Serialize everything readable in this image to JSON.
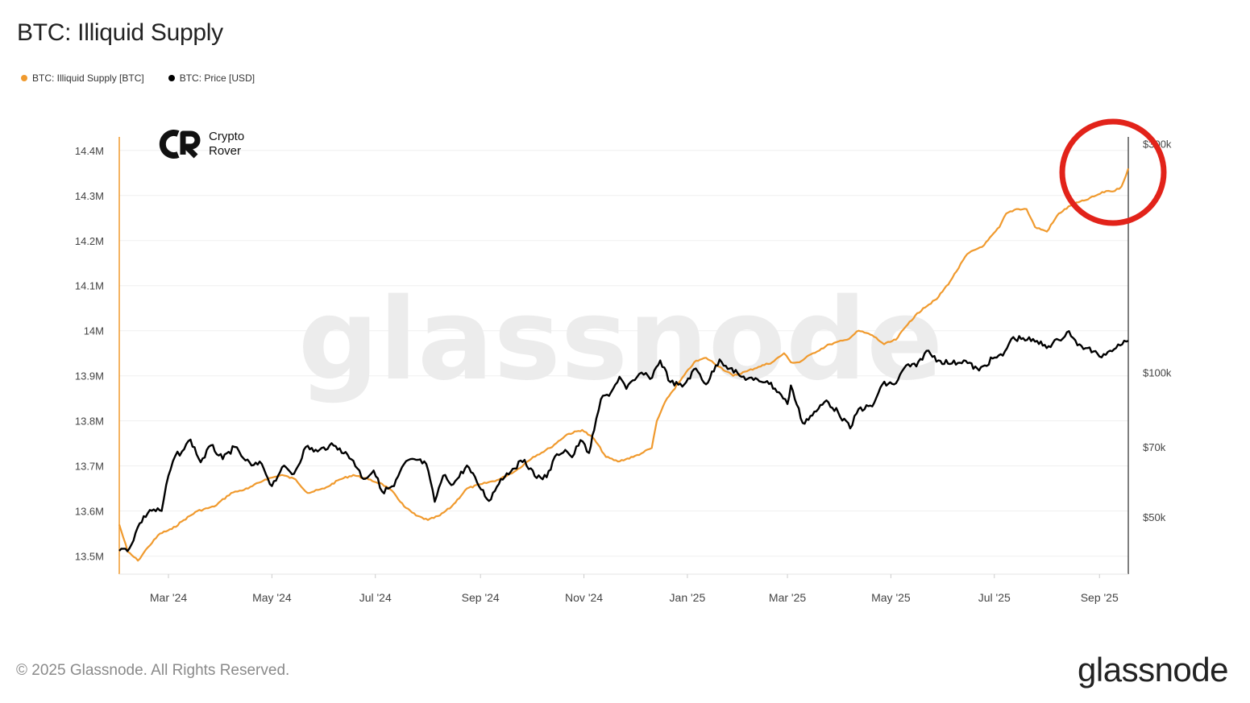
{
  "title": "BTC: Illiquid Supply",
  "legend": [
    {
      "label": "BTC: Illiquid Supply [BTC]",
      "color": "#f09a2e"
    },
    {
      "label": "BTC: Price [USD]",
      "color": "#000000"
    }
  ],
  "logo": {
    "line1": "Crypto",
    "line2": "Rover",
    "icon": "crypto-rover-logo-icon"
  },
  "watermark": "glassnode",
  "footer": "© 2025 Glassnode. All Rights Reserved.",
  "brand": "glassnode",
  "highlight": {
    "shape": "circle",
    "color": "#e2231a"
  },
  "chart_data": {
    "type": "line",
    "title": "BTC: Illiquid Supply",
    "x_ticks": [
      "Mar '24",
      "May '24",
      "Jul '24",
      "Sep '24",
      "Nov '24",
      "Jan '25",
      "Mar '25",
      "May '25",
      "Jul '25",
      "Sep '25"
    ],
    "x_tick_values": [
      "2024-03-01",
      "2024-05-01",
      "2024-07-01",
      "2024-09-01",
      "2024-11-01",
      "2025-01-01",
      "2025-03-01",
      "2025-05-01",
      "2025-07-01",
      "2025-09-01"
    ],
    "xlim": [
      "2024-02-01",
      "2025-09-18"
    ],
    "y_left": {
      "ticks": [
        "13.5M",
        "13.6M",
        "13.7M",
        "13.8M",
        "13.9M",
        "14M",
        "14.1M",
        "14.2M",
        "14.3M",
        "14.4M"
      ],
      "tick_values": [
        13.5,
        13.6,
        13.7,
        13.8,
        13.9,
        14.0,
        14.1,
        14.2,
        14.3,
        14.4
      ],
      "ylim": [
        13.46,
        14.43
      ],
      "unit": "M BTC"
    },
    "y_right": {
      "ticks": [
        "$50k",
        "$70k",
        "$100k",
        "$300k"
      ],
      "tick_values": [
        50000,
        70000,
        100000,
        300000
      ],
      "scale": "log",
      "ylim": [
        38000,
        310000
      ]
    },
    "grid": true,
    "legend_position": "top-left",
    "series": [
      {
        "name": "BTC: Illiquid Supply [BTC]",
        "color": "#f09a2e",
        "axis": "left",
        "points": [
          [
            "2024-02-01",
            13.57
          ],
          [
            "2024-02-06",
            13.51
          ],
          [
            "2024-02-12",
            13.49
          ],
          [
            "2024-02-18",
            13.52
          ],
          [
            "2024-02-25",
            13.55
          ],
          [
            "2024-03-03",
            13.56
          ],
          [
            "2024-03-10",
            13.58
          ],
          [
            "2024-03-18",
            13.6
          ],
          [
            "2024-03-28",
            13.61
          ],
          [
            "2024-04-07",
            13.64
          ],
          [
            "2024-04-17",
            13.65
          ],
          [
            "2024-04-27",
            13.67
          ],
          [
            "2024-05-07",
            13.68
          ],
          [
            "2024-05-15",
            13.67
          ],
          [
            "2024-05-22",
            13.64
          ],
          [
            "2024-06-01",
            13.65
          ],
          [
            "2024-06-10",
            13.67
          ],
          [
            "2024-06-18",
            13.68
          ],
          [
            "2024-06-27",
            13.67
          ],
          [
            "2024-07-05",
            13.66
          ],
          [
            "2024-07-12",
            13.64
          ],
          [
            "2024-07-18",
            13.61
          ],
          [
            "2024-07-25",
            13.59
          ],
          [
            "2024-08-01",
            13.58
          ],
          [
            "2024-08-08",
            13.59
          ],
          [
            "2024-08-15",
            13.61
          ],
          [
            "2024-08-24",
            13.65
          ],
          [
            "2024-09-02",
            13.66
          ],
          [
            "2024-09-12",
            13.67
          ],
          [
            "2024-09-22",
            13.69
          ],
          [
            "2024-10-02",
            13.72
          ],
          [
            "2024-10-12",
            13.74
          ],
          [
            "2024-10-22",
            13.77
          ],
          [
            "2024-10-31",
            13.78
          ],
          [
            "2024-11-07",
            13.76
          ],
          [
            "2024-11-14",
            13.72
          ],
          [
            "2024-11-21",
            13.71
          ],
          [
            "2024-11-30",
            13.72
          ],
          [
            "2024-12-06",
            13.73
          ],
          [
            "2024-12-11",
            13.74
          ],
          [
            "2024-12-14",
            13.8
          ],
          [
            "2024-12-20",
            13.85
          ],
          [
            "2024-12-28",
            13.89
          ],
          [
            "2025-01-05",
            13.93
          ],
          [
            "2025-01-12",
            13.94
          ],
          [
            "2025-01-20",
            13.92
          ],
          [
            "2025-01-28",
            13.9
          ],
          [
            "2025-02-05",
            13.91
          ],
          [
            "2025-02-12",
            13.92
          ],
          [
            "2025-02-20",
            13.93
          ],
          [
            "2025-02-27",
            13.95
          ],
          [
            "2025-03-03",
            13.93
          ],
          [
            "2025-03-08",
            13.93
          ],
          [
            "2025-03-16",
            13.95
          ],
          [
            "2025-03-26",
            13.97
          ],
          [
            "2025-04-05",
            13.98
          ],
          [
            "2025-04-12",
            14.0
          ],
          [
            "2025-04-20",
            13.99
          ],
          [
            "2025-04-27",
            13.97
          ],
          [
            "2025-05-04",
            13.98
          ],
          [
            "2025-05-12",
            14.02
          ],
          [
            "2025-05-20",
            14.05
          ],
          [
            "2025-05-28",
            14.07
          ],
          [
            "2025-06-05",
            14.11
          ],
          [
            "2025-06-15",
            14.17
          ],
          [
            "2025-06-25",
            14.19
          ],
          [
            "2025-07-04",
            14.23
          ],
          [
            "2025-07-08",
            14.26
          ],
          [
            "2025-07-14",
            14.27
          ],
          [
            "2025-07-20",
            14.27
          ],
          [
            "2025-07-25",
            14.23
          ],
          [
            "2025-08-01",
            14.22
          ],
          [
            "2025-08-08",
            14.26
          ],
          [
            "2025-08-16",
            14.28
          ],
          [
            "2025-08-24",
            14.29
          ],
          [
            "2025-08-30",
            14.3
          ],
          [
            "2025-09-05",
            14.31
          ],
          [
            "2025-09-10",
            14.31
          ],
          [
            "2025-09-14",
            14.32
          ],
          [
            "2025-09-18",
            14.36
          ]
        ]
      },
      {
        "name": "BTC: Price [USD]",
        "color": "#000000",
        "axis": "right",
        "points": [
          [
            "2024-02-01",
            42500
          ],
          [
            "2024-02-07",
            43000
          ],
          [
            "2024-02-13",
            48500
          ],
          [
            "2024-02-19",
            51700
          ],
          [
            "2024-02-26",
            51500
          ],
          [
            "2024-03-01",
            61000
          ],
          [
            "2024-03-05",
            67000
          ],
          [
            "2024-03-09",
            68500
          ],
          [
            "2024-03-14",
            72500
          ],
          [
            "2024-03-20",
            65000
          ],
          [
            "2024-03-26",
            70500
          ],
          [
            "2024-04-02",
            66000
          ],
          [
            "2024-04-09",
            70000
          ],
          [
            "2024-04-13",
            67000
          ],
          [
            "2024-04-19",
            64000
          ],
          [
            "2024-04-25",
            64500
          ],
          [
            "2024-05-01",
            58000
          ],
          [
            "2024-05-07",
            63500
          ],
          [
            "2024-05-14",
            61500
          ],
          [
            "2024-05-21",
            70000
          ],
          [
            "2024-05-28",
            68500
          ],
          [
            "2024-06-04",
            70500
          ],
          [
            "2024-06-10",
            69500
          ],
          [
            "2024-06-18",
            65500
          ],
          [
            "2024-06-24",
            60000
          ],
          [
            "2024-06-30",
            62500
          ],
          [
            "2024-07-05",
            56500
          ],
          [
            "2024-07-12",
            58000
          ],
          [
            "2024-07-18",
            64500
          ],
          [
            "2024-07-24",
            66000
          ],
          [
            "2024-07-31",
            64500
          ],
          [
            "2024-08-05",
            53800
          ],
          [
            "2024-08-10",
            61000
          ],
          [
            "2024-08-16",
            58500
          ],
          [
            "2024-08-24",
            64000
          ],
          [
            "2024-08-30",
            59000
          ],
          [
            "2024-09-06",
            54000
          ],
          [
            "2024-09-13",
            60000
          ],
          [
            "2024-09-20",
            63000
          ],
          [
            "2024-09-27",
            65800
          ],
          [
            "2024-10-03",
            60800
          ],
          [
            "2024-10-10",
            60500
          ],
          [
            "2024-10-16",
            67600
          ],
          [
            "2024-10-21",
            69000
          ],
          [
            "2024-10-25",
            66600
          ],
          [
            "2024-10-30",
            72300
          ],
          [
            "2024-11-04",
            68000
          ],
          [
            "2024-11-07",
            75800
          ],
          [
            "2024-11-11",
            88000
          ],
          [
            "2024-11-17",
            91000
          ],
          [
            "2024-11-22",
            98000
          ],
          [
            "2024-11-26",
            92500
          ],
          [
            "2024-12-01",
            96500
          ],
          [
            "2024-12-05",
            100000
          ],
          [
            "2024-12-10",
            97000
          ],
          [
            "2024-12-16",
            106000
          ],
          [
            "2024-12-22",
            95500
          ],
          [
            "2024-12-29",
            93500
          ],
          [
            "2025-01-06",
            102000
          ],
          [
            "2025-01-12",
            94500
          ],
          [
            "2025-01-20",
            106500
          ],
          [
            "2025-01-26",
            102000
          ],
          [
            "2025-02-02",
            98000
          ],
          [
            "2025-02-09",
            96500
          ],
          [
            "2025-02-17",
            96000
          ],
          [
            "2025-02-24",
            91000
          ],
          [
            "2025-03-01",
            86000
          ],
          [
            "2025-03-03",
            94000
          ],
          [
            "2025-03-10",
            78500
          ],
          [
            "2025-03-18",
            83000
          ],
          [
            "2025-03-24",
            87500
          ],
          [
            "2025-03-31",
            82500
          ],
          [
            "2025-04-07",
            76500
          ],
          [
            "2025-04-12",
            84000
          ],
          [
            "2025-04-20",
            85000
          ],
          [
            "2025-04-26",
            94500
          ],
          [
            "2025-05-04",
            95000
          ],
          [
            "2025-05-10",
            103500
          ],
          [
            "2025-05-16",
            103000
          ],
          [
            "2025-05-22",
            111000
          ],
          [
            "2025-05-29",
            106000
          ],
          [
            "2025-06-06",
            104500
          ],
          [
            "2025-06-13",
            106000
          ],
          [
            "2025-06-22",
            101000
          ],
          [
            "2025-06-30",
            107000
          ],
          [
            "2025-07-06",
            108500
          ],
          [
            "2025-07-11",
            117500
          ],
          [
            "2025-07-18",
            118000
          ],
          [
            "2025-07-25",
            116000
          ],
          [
            "2025-08-02",
            113500
          ],
          [
            "2025-08-08",
            117000
          ],
          [
            "2025-08-14",
            122000
          ],
          [
            "2025-08-19",
            114000
          ],
          [
            "2025-08-25",
            112500
          ],
          [
            "2025-09-01",
            108000
          ],
          [
            "2025-09-06",
            110500
          ],
          [
            "2025-09-12",
            114500
          ],
          [
            "2025-09-18",
            116500
          ]
        ]
      }
    ]
  }
}
